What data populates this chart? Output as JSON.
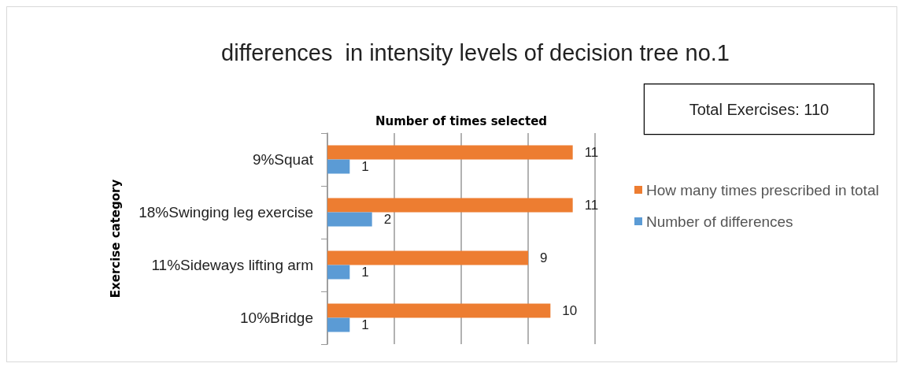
{
  "chart_data": {
    "type": "bar",
    "orientation": "horizontal",
    "title": "differences  in intensity levels of decision tree no.1",
    "xlabel": "Number of times selected",
    "ylabel": "Exercise category",
    "categories": [
      "9%Squat",
      "18%Swinging leg exercise",
      "11%Sideways lifting arm",
      "10%Bridge"
    ],
    "series": [
      {
        "name": "How many times prescribed in total",
        "color": "#ed7d31",
        "values": [
          11,
          11,
          9,
          10
        ]
      },
      {
        "name": "Number of differences",
        "color": "#5b9bd5",
        "values": [
          1,
          2,
          1,
          1
        ]
      }
    ],
    "xlim": [
      0,
      12
    ],
    "xticks": [
      {
        "value": 0,
        "label": null
      },
      {
        "value": 3,
        "label": null
      },
      {
        "value": 6,
        "label": null
      },
      {
        "value": 9,
        "label": null
      },
      {
        "value": 12,
        "label": null
      }
    ],
    "tick_labels": "y",
    "grid": "x",
    "data_labels": true,
    "legend": "right",
    "annotations": [
      "Total Exercises: 110"
    ]
  }
}
